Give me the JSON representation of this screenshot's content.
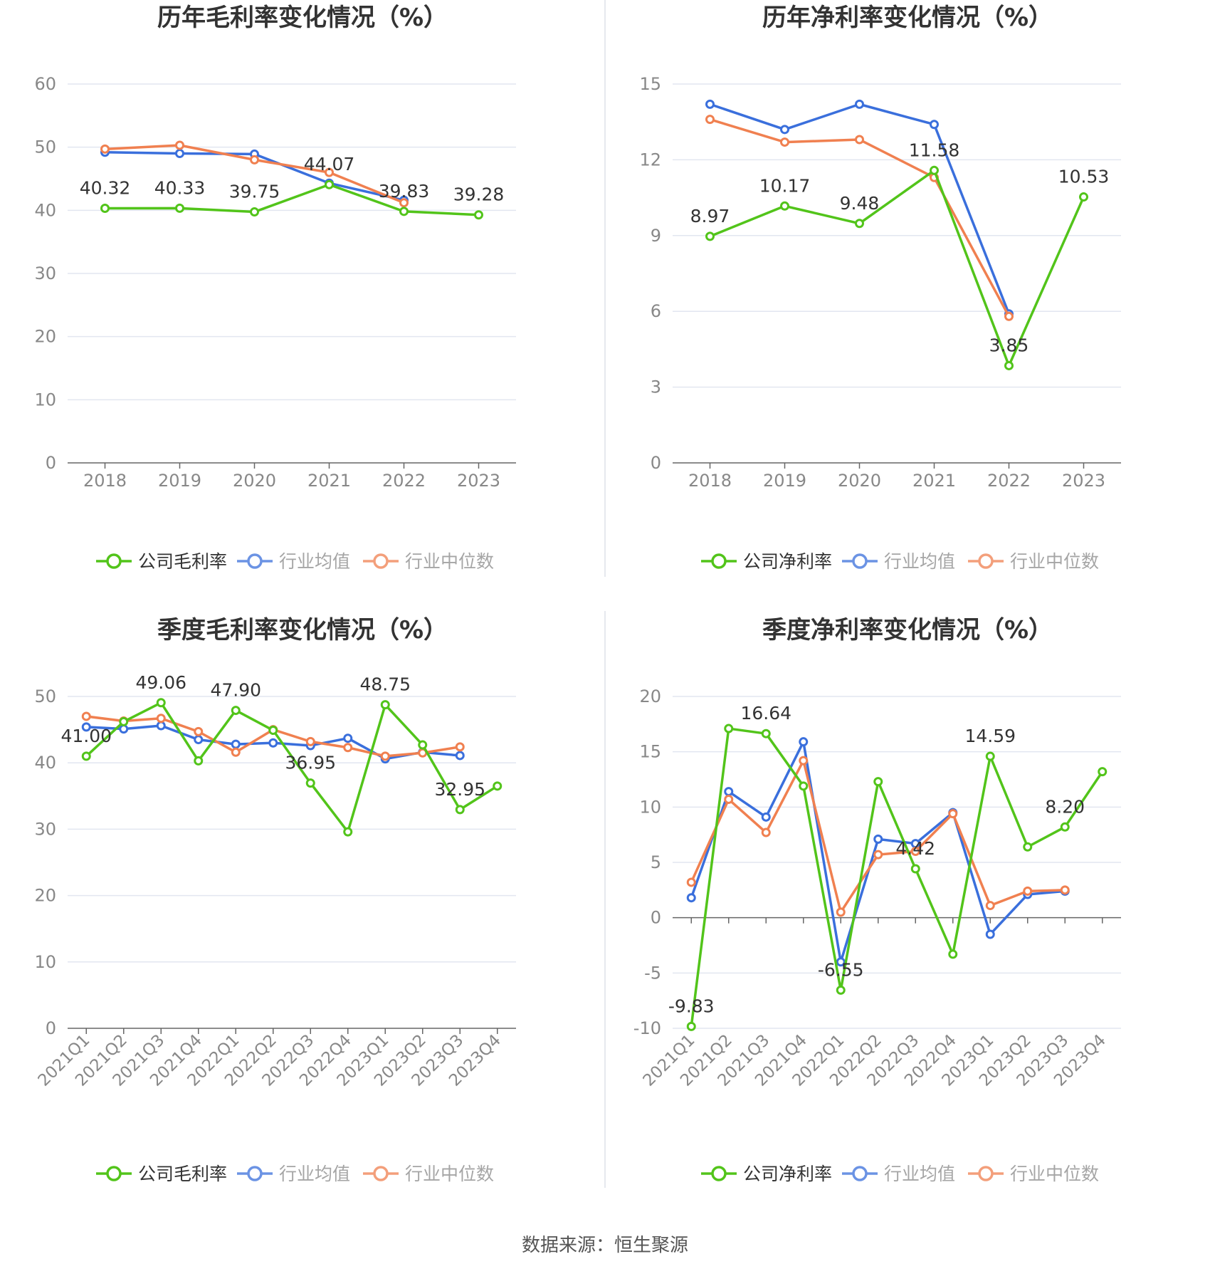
{
  "source": "数据来源：恒生聚源",
  "colors": {
    "company": "#52c41a",
    "avg": "#3a6fdc",
    "median": "#f08050",
    "grid": "#e2e6f0",
    "axis": "#666666",
    "tick": "#888888",
    "label": "#333333"
  },
  "chart_data": [
    {
      "type": "line",
      "title": "历年毛利率变化情况（%）",
      "categories": [
        "2018",
        "2019",
        "2020",
        "2021",
        "2022",
        "2023"
      ],
      "ylim": [
        0,
        60
      ],
      "yticks": [
        0,
        10,
        20,
        30,
        40,
        50,
        60
      ],
      "series": [
        {
          "name": "公司毛利率",
          "values": [
            40.32,
            40.33,
            39.75,
            44.07,
            39.83,
            39.28
          ],
          "labels": [
            "40.32",
            "40.33",
            "39.75",
            "44.07",
            "39.83",
            "39.28"
          ]
        },
        {
          "name": "行业均值",
          "values": [
            49.2,
            49.0,
            48.9,
            44.3,
            41.6,
            null
          ]
        },
        {
          "name": "行业中位数",
          "values": [
            49.7,
            50.3,
            48.0,
            46.0,
            41.2,
            null
          ]
        }
      ]
    },
    {
      "type": "line",
      "title": "历年净利率变化情况（%）",
      "categories": [
        "2018",
        "2019",
        "2020",
        "2021",
        "2022",
        "2023"
      ],
      "ylim": [
        0,
        15
      ],
      "yticks": [
        0,
        3,
        6,
        9,
        12,
        15
      ],
      "series": [
        {
          "name": "公司净利率",
          "values": [
            8.97,
            10.17,
            9.48,
            11.58,
            3.85,
            10.53
          ],
          "labels": [
            "8.97",
            "10.17",
            "9.48",
            "11.58",
            "3.85",
            "10.53"
          ]
        },
        {
          "name": "行业均值",
          "values": [
            14.2,
            13.2,
            14.2,
            13.4,
            5.9,
            null
          ]
        },
        {
          "name": "行业中位数",
          "values": [
            13.6,
            12.7,
            12.8,
            11.3,
            5.8,
            null
          ]
        }
      ]
    },
    {
      "type": "line",
      "title": "季度毛利率变化情况（%）",
      "categories": [
        "2021Q1",
        "2021Q2",
        "2021Q3",
        "2021Q4",
        "2022Q1",
        "2022Q2",
        "2022Q3",
        "2022Q4",
        "2023Q1",
        "2023Q2",
        "2023Q3",
        "2023Q4"
      ],
      "ylim": [
        0,
        50
      ],
      "yticks": [
        0,
        10,
        20,
        30,
        40,
        50
      ],
      "series": [
        {
          "name": "公司毛利率",
          "values": [
            41.0,
            46.2,
            49.06,
            40.3,
            47.9,
            44.9,
            36.95,
            29.6,
            48.75,
            42.7,
            32.95,
            36.5
          ],
          "labels": [
            "41.00",
            "",
            "49.06",
            "",
            "47.90",
            "",
            "36.95",
            "",
            "48.75",
            "",
            "32.95",
            ""
          ]
        },
        {
          "name": "行业均值",
          "values": [
            45.4,
            45.1,
            45.6,
            43.5,
            42.8,
            43.0,
            42.6,
            43.7,
            40.6,
            41.6,
            41.1,
            null
          ]
        },
        {
          "name": "行业中位数",
          "values": [
            47.0,
            46.3,
            46.7,
            44.7,
            41.6,
            45.0,
            43.2,
            42.3,
            41.0,
            41.5,
            42.4,
            null
          ]
        }
      ]
    },
    {
      "type": "line",
      "title": "季度净利率变化情况（%）",
      "categories": [
        "2021Q1",
        "2021Q2",
        "2021Q3",
        "2021Q4",
        "2022Q1",
        "2022Q2",
        "2022Q3",
        "2022Q4",
        "2023Q1",
        "2023Q2",
        "2023Q3",
        "2023Q4"
      ],
      "ylim": [
        -10,
        20
      ],
      "yticks": [
        -10,
        -5,
        0,
        5,
        10,
        15,
        20
      ],
      "series": [
        {
          "name": "公司净利率",
          "values": [
            -9.83,
            17.1,
            16.64,
            11.9,
            -6.55,
            12.3,
            4.42,
            -3.3,
            14.59,
            6.4,
            8.2,
            13.2
          ],
          "labels": [
            "-9.83",
            "",
            "16.64",
            "",
            "-6.55",
            "",
            "4.42",
            "",
            "14.59",
            "",
            "8.20",
            ""
          ]
        },
        {
          "name": "行业均值",
          "values": [
            1.8,
            11.4,
            9.1,
            15.9,
            -4.0,
            7.1,
            6.7,
            9.5,
            -1.5,
            2.1,
            2.4,
            null
          ]
        },
        {
          "name": "行业中位数",
          "values": [
            3.2,
            10.7,
            7.7,
            14.2,
            0.5,
            5.7,
            6.0,
            9.4,
            1.1,
            2.4,
            2.5,
            null
          ]
        }
      ]
    }
  ]
}
